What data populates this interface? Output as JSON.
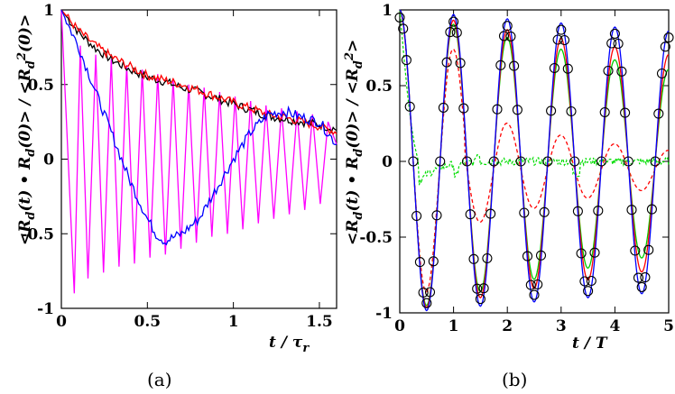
{
  "chart_data": [
    {
      "panel": "(a)",
      "type": "line",
      "xlabel": "t / τr",
      "ylabel": "<Rd(t) • Rd(0)> / <Rd²(0)>",
      "xlim": [
        0,
        1.6
      ],
      "ylim": [
        -1,
        1
      ],
      "xticks": [
        "0",
        "0.5",
        "1",
        "1.5"
      ],
      "yticks": [
        "1",
        "0.5",
        "0",
        "-0.5",
        "-1"
      ],
      "colors": {
        "black": "#000000",
        "red": "#ff0000",
        "blue": "#0000ff",
        "magenta": "#ff00ff"
      },
      "series": [
        {
          "color": "black",
          "x": [
            0,
            0.1,
            0.2,
            0.3,
            0.4,
            0.5,
            0.6,
            0.7,
            0.8,
            0.9,
            1.0,
            1.1,
            1.2,
            1.3,
            1.4,
            1.5,
            1.6
          ],
          "values": [
            1.0,
            0.85,
            0.74,
            0.66,
            0.6,
            0.55,
            0.52,
            0.48,
            0.45,
            0.41,
            0.37,
            0.33,
            0.29,
            0.27,
            0.25,
            0.23,
            0.2
          ]
        },
        {
          "color": "red",
          "x": [
            0,
            0.1,
            0.2,
            0.3,
            0.4,
            0.5,
            0.6,
            0.7,
            0.8,
            0.9,
            1.0,
            1.1,
            1.2,
            1.3,
            1.4,
            1.5,
            1.6
          ],
          "values": [
            1.0,
            0.86,
            0.76,
            0.68,
            0.62,
            0.56,
            0.53,
            0.5,
            0.46,
            0.42,
            0.38,
            0.34,
            0.3,
            0.28,
            0.25,
            0.22,
            0.18
          ]
        },
        {
          "color": "blue",
          "x": [
            0,
            0.1,
            0.2,
            0.3,
            0.4,
            0.5,
            0.55,
            0.6,
            0.7,
            0.8,
            0.9,
            1.0,
            1.1,
            1.2,
            1.3,
            1.4,
            1.5,
            1.6
          ],
          "values": [
            1.0,
            0.75,
            0.45,
            0.15,
            -0.15,
            -0.4,
            -0.5,
            -0.55,
            -0.5,
            -0.4,
            -0.2,
            0.0,
            0.18,
            0.3,
            0.32,
            0.28,
            0.25,
            0.1
          ]
        },
        {
          "color": "magenta",
          "x": [
            0,
            0.075,
            0.11,
            0.155,
            0.2,
            0.245,
            0.29,
            0.335,
            0.38,
            0.425,
            0.47,
            0.515,
            0.56,
            0.605,
            0.65,
            0.695,
            0.74,
            0.785,
            0.83,
            0.875,
            0.92,
            0.965,
            1.01,
            1.055,
            1.1,
            1.145,
            1.19,
            1.235,
            1.28,
            1.325,
            1.37,
            1.415,
            1.46,
            1.505,
            1.55,
            1.6
          ],
          "values": [
            1.0,
            -0.9,
            0.76,
            -0.8,
            0.7,
            -0.76,
            0.67,
            -0.72,
            0.63,
            -0.7,
            0.6,
            -0.66,
            0.57,
            -0.64,
            0.54,
            -0.6,
            0.5,
            -0.56,
            0.48,
            -0.52,
            0.45,
            -0.5,
            0.42,
            -0.47,
            0.39,
            -0.43,
            0.36,
            -0.4,
            0.34,
            -0.37,
            0.32,
            -0.34,
            0.3,
            -0.3,
            0.25,
            0.1
          ]
        }
      ]
    },
    {
      "panel": "(b)",
      "type": "line",
      "xlabel": "t / T",
      "ylabel": "<Rd(t) • Rd(0)> / <Rd²>",
      "xlim": [
        0,
        5
      ],
      "ylim": [
        -1,
        1
      ],
      "xticks": [
        "0",
        "1",
        "2",
        "3",
        "4",
        "5"
      ],
      "yticks": [
        "1",
        "0.5",
        "0",
        "-0.5",
        "-1"
      ],
      "colors": {
        "blue": "#0000ff",
        "red": "#ff0000",
        "green": "#00cc00",
        "red_dashed": "#ff0000",
        "green_dashed": "#00dd00",
        "markers": "#000000"
      },
      "series": [
        {
          "color": "blue",
          "style": "solid",
          "damping": 0.03,
          "amplitude": 1.0
        },
        {
          "color": "red",
          "style": "solid",
          "damping": 0.07,
          "amplitude": 1.0
        },
        {
          "color": "green",
          "style": "solid",
          "damping": 0.1,
          "amplitude": 1.0
        },
        {
          "color": "red_dashed",
          "style": "dashed",
          "damping": 0.3,
          "amplitude": 1.0
        },
        {
          "color": "green_dashed",
          "style": "dashed",
          "note": "decays quickly to ~0 with small fluctuations"
        },
        {
          "color": "markers",
          "style": "circles",
          "damping": 0.03,
          "amplitude": 0.95
        }
      ]
    }
  ],
  "captions": {
    "a": "(a)",
    "b": "(b)"
  }
}
